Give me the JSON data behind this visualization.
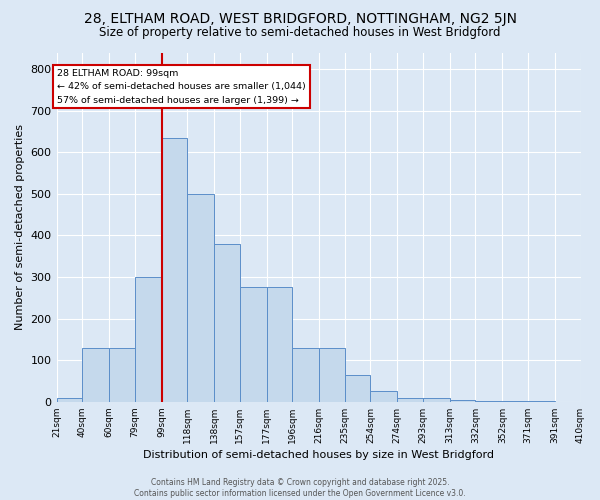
{
  "title1": "28, ELTHAM ROAD, WEST BRIDGFORD, NOTTINGHAM, NG2 5JN",
  "title2": "Size of property relative to semi-detached houses in West Bridgford",
  "xlabel": "Distribution of semi-detached houses by size in West Bridgford",
  "ylabel": "Number of semi-detached properties",
  "bin_labels": [
    "21sqm",
    "40sqm",
    "60sqm",
    "79sqm",
    "99sqm",
    "118sqm",
    "138sqm",
    "157sqm",
    "177sqm",
    "196sqm",
    "216sqm",
    "235sqm",
    "254sqm",
    "274sqm",
    "293sqm",
    "313sqm",
    "332sqm",
    "352sqm",
    "371sqm",
    "391sqm",
    "410sqm"
  ],
  "bin_edges": [
    21,
    40,
    60,
    79,
    99,
    118,
    138,
    157,
    177,
    196,
    216,
    235,
    254,
    274,
    293,
    313,
    332,
    352,
    371,
    391,
    410
  ],
  "bar_heights": [
    10,
    130,
    130,
    300,
    635,
    500,
    380,
    275,
    275,
    130,
    130,
    65,
    25,
    10,
    10,
    5,
    2,
    2,
    1,
    0
  ],
  "bar_color": "#c5d9ec",
  "bar_edge_color": "#5b8ec9",
  "property_size": 99,
  "vline_color": "#cc0000",
  "annotation_box_edge_color": "#cc0000",
  "annotation_text1": "28 ELTHAM ROAD: 99sqm",
  "annotation_text2": "← 42% of semi-detached houses are smaller (1,044)",
  "annotation_text3": "57% of semi-detached houses are larger (1,399) →",
  "ylim": [
    0,
    840
  ],
  "yticks": [
    0,
    100,
    200,
    300,
    400,
    500,
    600,
    700,
    800
  ],
  "footer1": "Contains HM Land Registry data © Crown copyright and database right 2025.",
  "footer2": "Contains public sector information licensed under the Open Government Licence v3.0.",
  "background_color": "#dce8f5",
  "grid_color": "#ffffff",
  "title1_fontsize": 10,
  "title2_fontsize": 8.5
}
